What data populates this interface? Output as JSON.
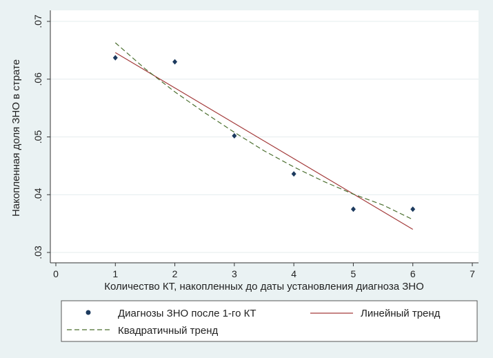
{
  "chart_data": {
    "type": "scatter",
    "xlabel": "Количество КТ, накопленных до даты установления диагноза ЗНО",
    "ylabel": "Накопленная доля ЗНО в страте",
    "xlim": [
      0,
      7
    ],
    "ylim": [
      0.03,
      0.07
    ],
    "x_ticks": [
      "0",
      "1",
      "2",
      "3",
      "4",
      "5",
      "6",
      "7"
    ],
    "y_ticks": [
      ".03",
      ".04",
      ".05",
      ".06",
      ".07"
    ],
    "grid": "horizontal",
    "legend_position": "bottom",
    "series": [
      {
        "name": "Диагнозы ЗНО после 1-го КТ",
        "kind": "points",
        "color": "#1c3a5e",
        "x": [
          1,
          2,
          3,
          4,
          5,
          6
        ],
        "y": [
          0.0637,
          0.063,
          0.0502,
          0.0436,
          0.0375,
          0.0375
        ]
      },
      {
        "name": "Линейный тренд",
        "kind": "line",
        "color": "#a33a3a",
        "x": [
          1,
          6
        ],
        "y": [
          0.0646,
          0.034
        ]
      },
      {
        "name": "Квадратичный тренд",
        "kind": "dashed",
        "color": "#4a6e2e",
        "x": [
          1,
          1.5,
          2,
          2.5,
          3,
          3.5,
          4,
          4.5,
          5,
          5.5,
          6
        ],
        "y": [
          0.0663,
          0.0618,
          0.0578,
          0.0542,
          0.0508,
          0.0476,
          0.0448,
          0.0423,
          0.0401,
          0.0382,
          0.0357
        ]
      }
    ]
  }
}
